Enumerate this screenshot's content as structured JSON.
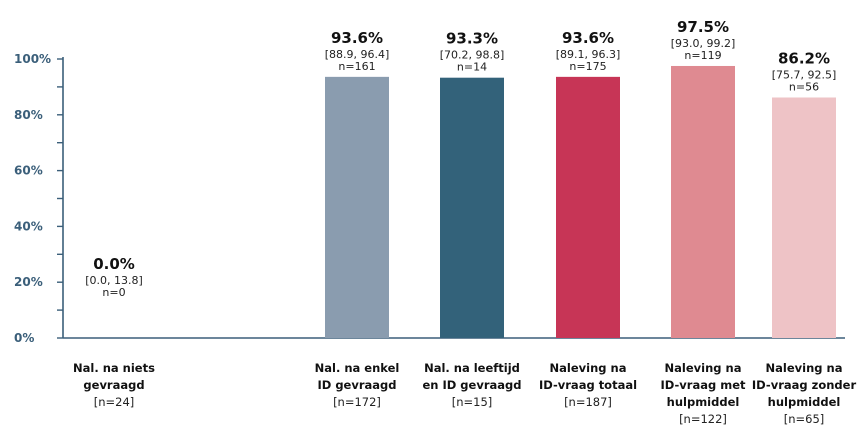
{
  "chart_data": {
    "type": "bar",
    "ylim": [
      0,
      100
    ],
    "yticks": [
      "0%",
      "20%",
      "40%",
      "60%",
      "80%",
      "100%"
    ],
    "grid": false,
    "legend": "none",
    "categories": [
      {
        "lines": [
          "Nal. na niets",
          "gevraagd"
        ],
        "n": "[n=24]"
      },
      {
        "lines": [
          "Nal. na enkel",
          "ID gevraagd"
        ],
        "n": "[n=172]"
      },
      {
        "lines": [
          "Nal. na leeftijd",
          "en ID gevraagd"
        ],
        "n": "[n=15]"
      },
      {
        "lines": [
          "Naleving na",
          "ID-vraag totaal"
        ],
        "n": "[n=187]"
      },
      {
        "lines": [
          "Naleving na",
          "ID-vraag met",
          "hulpmiddel"
        ],
        "n": "[n=122]"
      },
      {
        "lines": [
          "Naleving na",
          "ID-vraag zonder",
          "hulpmiddel"
        ],
        "n": "[n=65]"
      }
    ],
    "values": [
      0.0,
      93.6,
      93.3,
      93.6,
      97.5,
      86.2
    ],
    "value_labels": [
      "0.0%",
      "93.6%",
      "93.3%",
      "93.6%",
      "97.5%",
      "86.2%"
    ],
    "ci_labels": [
      "[0.0, 13.8]",
      "[88.9, 96.4]",
      "[70.2, 98.8]",
      "[89.1, 96.3]",
      "[93.0, 99.2]",
      "[75.7, 92.5]"
    ],
    "n_labels": [
      "n=0",
      "n=161",
      "n=14",
      "n=175",
      "n=119",
      "n=56"
    ],
    "colors": [
      "#8fa0b5",
      "#8a9caf",
      "#33627a",
      "#c73556",
      "#df8a91",
      "#eec3c6"
    ],
    "axis_color": "#3b5f7a"
  }
}
